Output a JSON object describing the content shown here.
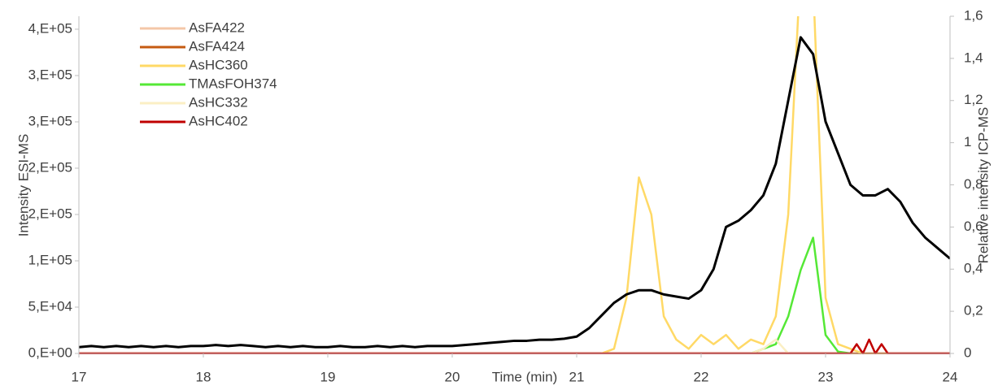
{
  "chart_data": {
    "type": "line",
    "x_label": "Time (min)",
    "y_label": "Intensity ESI-MS",
    "y2_label": "Relative intensity ICP-MS",
    "xlim": [
      17,
      24
    ],
    "xticks": [
      17,
      18,
      19,
      20,
      21,
      22,
      23,
      24
    ],
    "ylim": [
      0,
      364000
    ],
    "yticks": [
      {
        "value": 0,
        "label": "0,E+00"
      },
      {
        "value": 50000,
        "label": "5,E+04"
      },
      {
        "value": 100000,
        "label": "1,E+05"
      },
      {
        "value": 150000,
        "label": "2,E+05"
      },
      {
        "value": 200000,
        "label": "2,E+05"
      },
      {
        "value": 250000,
        "label": "3,E+05"
      },
      {
        "value": 300000,
        "label": "3,E+05"
      },
      {
        "value": 350000,
        "label": "4,E+05"
      }
    ],
    "y2lim": [
      0,
      1.6
    ],
    "y2ticks": [
      0,
      {
        "value": 0.2,
        "label": "0,2"
      },
      {
        "value": 0.4,
        "label": "0,4"
      },
      {
        "value": 0.6,
        "label": "0,6"
      },
      {
        "value": 0.8,
        "label": "0,8"
      },
      1,
      {
        "value": 1.2,
        "label": "1,2"
      },
      {
        "value": 1.4,
        "label": "1,4"
      },
      {
        "value": 1.6,
        "label": "1,6"
      }
    ],
    "series": [
      {
        "name": "AsFA422",
        "color": "#f4c7a8",
        "x": [
          17,
          24
        ],
        "values": [
          0,
          0
        ]
      },
      {
        "name": "AsFA424",
        "color": "#c55a11",
        "x": [
          17,
          24
        ],
        "values": [
          0,
          0
        ]
      },
      {
        "name": "AsHC360",
        "color": "#ffd966",
        "x": [
          21.2,
          21.3,
          21.4,
          21.5,
          21.6,
          21.7,
          21.8,
          21.9,
          22.0,
          22.1,
          22.2,
          22.3,
          22.4,
          22.5,
          22.6,
          22.7,
          22.8,
          22.9,
          23.0,
          23.1,
          23.2,
          23.3
        ],
        "values": [
          0,
          5000,
          60000,
          190000,
          150000,
          40000,
          15000,
          5000,
          20000,
          10000,
          20000,
          5000,
          15000,
          10000,
          40000,
          150000,
          420000,
          400000,
          60000,
          10000,
          5000,
          0
        ]
      },
      {
        "name": "TMAsFOH374",
        "color": "#55e836",
        "x": [
          22.4,
          22.5,
          22.6,
          22.7,
          22.8,
          22.9,
          23.0,
          23.1,
          23.2
        ],
        "values": [
          0,
          5000,
          10000,
          40000,
          90000,
          125000,
          20000,
          2000,
          0
        ]
      },
      {
        "name": "AsHC332",
        "color": "#fbefc4",
        "x": [
          22.4,
          22.5,
          22.6,
          22.7
        ],
        "values": [
          0,
          5000,
          15000,
          0
        ]
      },
      {
        "color": "#000000",
        "axis": "y2",
        "width": 3,
        "x": [
          17,
          17.1,
          17.2,
          17.3,
          17.4,
          17.5,
          17.6,
          17.7,
          17.8,
          17.9,
          18,
          18.1,
          18.2,
          18.3,
          18.4,
          18.5,
          18.6,
          18.7,
          18.8,
          18.9,
          19,
          19.1,
          19.2,
          19.3,
          19.4,
          19.5,
          19.6,
          19.7,
          19.8,
          19.9,
          20,
          20.1,
          20.2,
          20.3,
          20.4,
          20.5,
          20.6,
          20.7,
          20.8,
          20.9,
          21,
          21.1,
          21.2,
          21.3,
          21.4,
          21.5,
          21.6,
          21.7,
          21.8,
          21.9,
          22,
          22.1,
          22.2,
          22.3,
          22.4,
          22.5,
          22.6,
          22.7,
          22.8,
          22.9,
          23,
          23.1,
          23.2,
          23.3,
          23.4,
          23.5,
          23.6,
          23.7,
          23.8,
          23.9,
          24
        ],
        "values": [
          0.03,
          0.035,
          0.03,
          0.035,
          0.03,
          0.035,
          0.03,
          0.035,
          0.03,
          0.035,
          0.035,
          0.04,
          0.035,
          0.04,
          0.035,
          0.03,
          0.035,
          0.03,
          0.035,
          0.03,
          0.03,
          0.035,
          0.03,
          0.03,
          0.035,
          0.03,
          0.035,
          0.03,
          0.035,
          0.035,
          0.035,
          0.04,
          0.045,
          0.05,
          0.055,
          0.06,
          0.06,
          0.065,
          0.065,
          0.07,
          0.08,
          0.12,
          0.18,
          0.24,
          0.28,
          0.3,
          0.3,
          0.28,
          0.27,
          0.26,
          0.3,
          0.4,
          0.6,
          0.63,
          0.68,
          0.75,
          0.9,
          1.2,
          1.5,
          1.42,
          1.1,
          0.95,
          0.8,
          0.75,
          0.75,
          0.78,
          0.72,
          0.62,
          0.55,
          0.5,
          0.45
        ]
      },
      {
        "name": "AsHC402",
        "color": "#c00000",
        "x": [
          17,
          23.2,
          23.25,
          23.3,
          23.35,
          23.4,
          23.45,
          23.5,
          24
        ],
        "values": [
          0,
          0,
          10000,
          0,
          15000,
          0,
          10000,
          0,
          0
        ]
      }
    ]
  }
}
